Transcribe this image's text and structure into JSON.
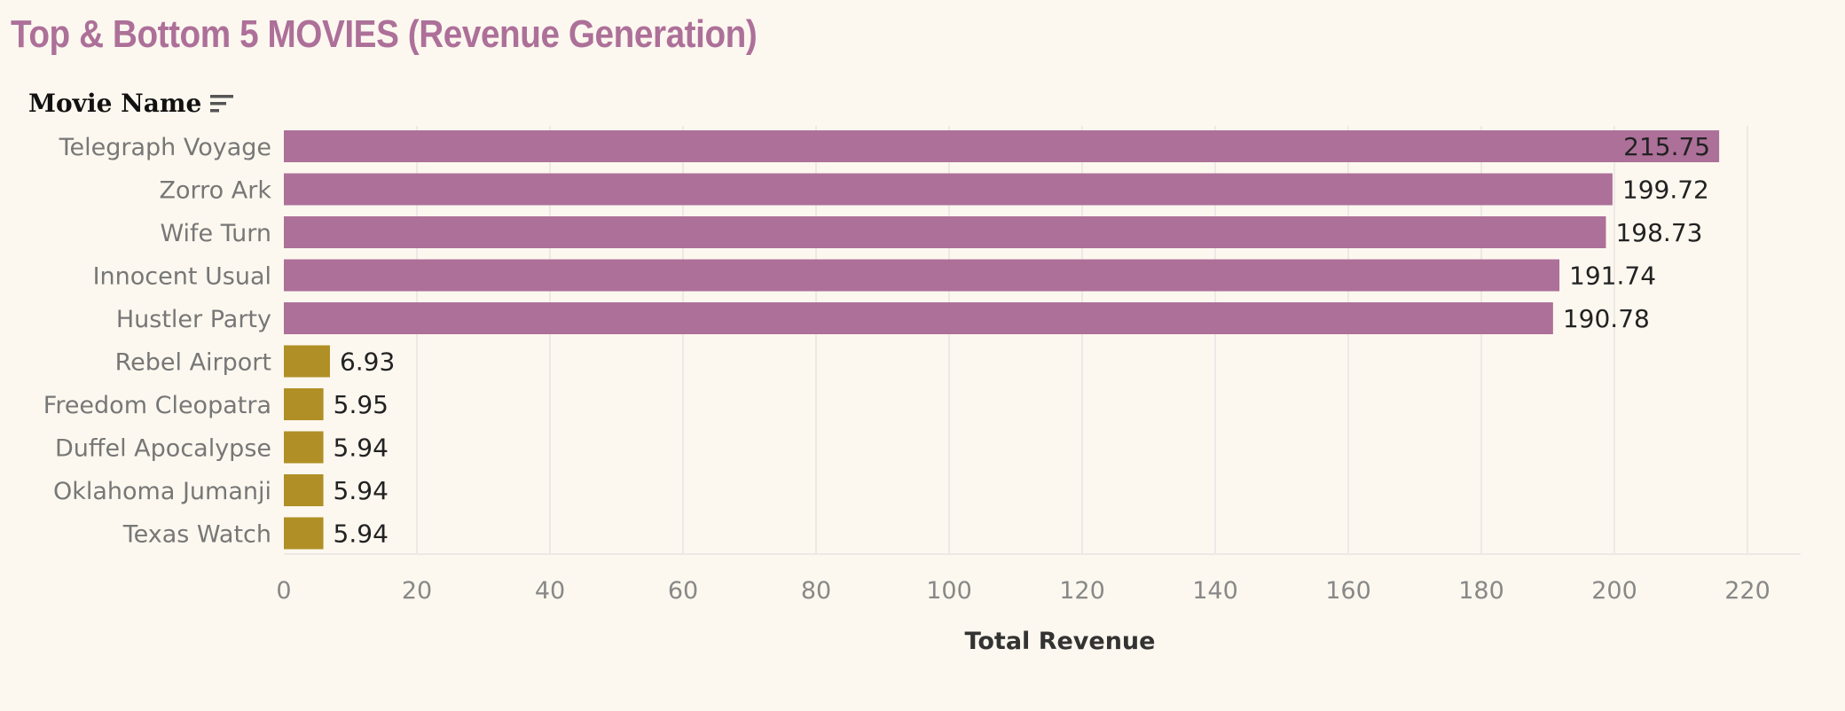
{
  "title": "Top & Bottom 5 MOVIES (Revenue Generation)",
  "field_header": {
    "label": "Movie Name",
    "sort_icon": "sort-descending-icon"
  },
  "colors": {
    "background": "#fdf8ef",
    "title": "#ad7099",
    "top": "#ad7099",
    "bottom": "#b08f26",
    "gridline": "#ece9e6",
    "category_text": "#777777",
    "value_text": "#222222",
    "tick_text": "#888888",
    "axis_title_text": "#333333"
  },
  "chart_data": {
    "type": "bar",
    "orientation": "horizontal",
    "categories": [
      "Telegraph Voyage",
      "Zorro Ark",
      "Wife Turn",
      "Innocent Usual",
      "Hustler Party",
      "Rebel Airport",
      "Freedom Cleopatra",
      "Duffel Apocalypse",
      "Oklahoma Jumanji",
      "Texas Watch"
    ],
    "values": [
      215.75,
      199.72,
      198.73,
      191.74,
      190.78,
      6.93,
      5.95,
      5.94,
      5.94,
      5.94
    ],
    "value_labels": [
      "215.75",
      "199.72",
      "198.73",
      "191.74",
      "190.78",
      "6.93",
      "5.95",
      "5.94",
      "5.94",
      "5.94"
    ],
    "groups": [
      "top",
      "top",
      "top",
      "top",
      "top",
      "bottom",
      "bottom",
      "bottom",
      "bottom",
      "bottom"
    ],
    "xlabel": "Total Revenue",
    "ylabel": "Movie Name",
    "xlim": [
      0,
      228
    ],
    "xticks": [
      0,
      20,
      40,
      60,
      80,
      100,
      120,
      140,
      160,
      180,
      200,
      220
    ],
    "grid": true,
    "legend": "none"
  }
}
